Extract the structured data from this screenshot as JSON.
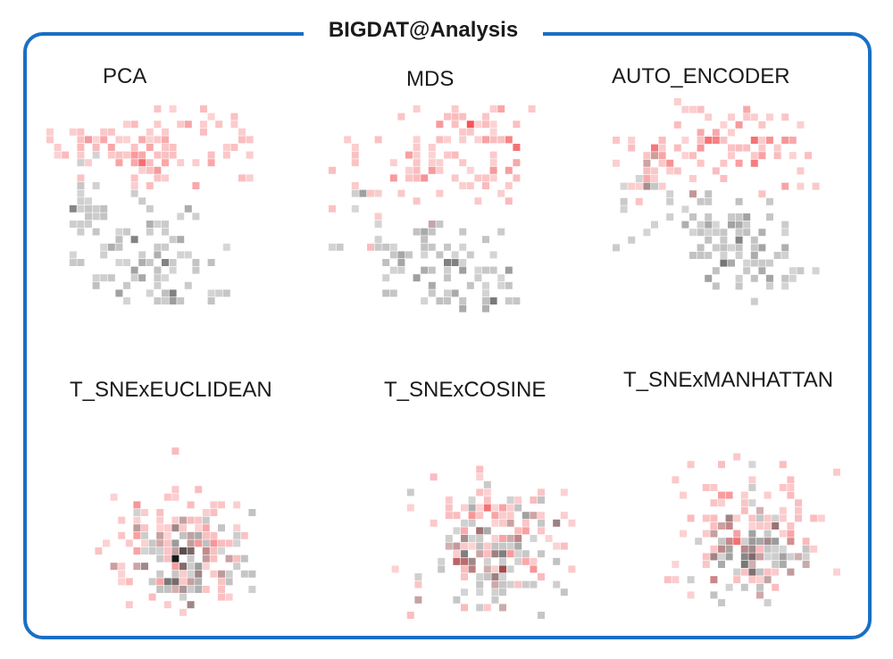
{
  "dashboard": {
    "title": "BIGDAT@Analysis"
  },
  "colors": {
    "frame": "#1a6fc4",
    "class_a": "#f0383c",
    "class_b": "#5a5a5a"
  },
  "chart_data": [
    {
      "type": "heatmap",
      "title": "PCA"
    },
    {
      "type": "heatmap",
      "title": "MDS"
    },
    {
      "type": "heatmap",
      "title": "AUTO_ENCODER"
    },
    {
      "type": "heatmap",
      "title": "T_SNExEUCLIDEAN"
    },
    {
      "type": "heatmap",
      "title": "T_SNExCOSINE"
    },
    {
      "type": "heatmap",
      "title": "T_SNExMANHATTAN"
    }
  ]
}
